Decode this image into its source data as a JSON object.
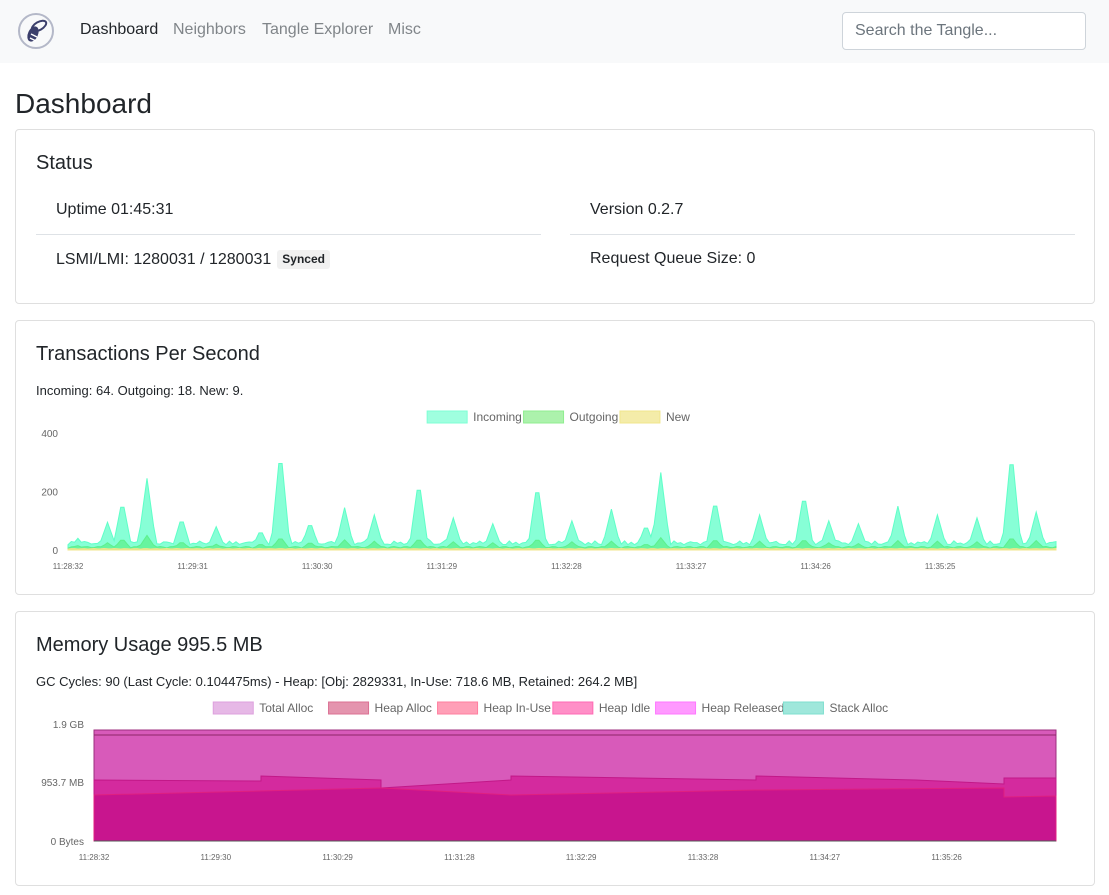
{
  "nav": {
    "items": [
      {
        "label": "Dashboard",
        "active": true
      },
      {
        "label": "Neighbors",
        "active": false
      },
      {
        "label": "Tangle Explorer",
        "active": false
      },
      {
        "label": "Misc",
        "active": false
      }
    ],
    "search_placeholder": "Search the Tangle..."
  },
  "page_title": "Dashboard",
  "status": {
    "title": "Status",
    "uptime": "Uptime 01:45:31",
    "version": "Version 0.2.7",
    "lsmi": "LSMI/LMI: 1280031 / 1280031",
    "synced_badge": "Synced",
    "request_queue": "Request Queue Size: 0"
  },
  "tps": {
    "title": "Transactions Per Second",
    "summary": "Incoming: 64. Outgoing: 18. New: 9."
  },
  "memory": {
    "title": "Memory Usage 995.5 MB",
    "summary": "GC Cycles: 90 (Last Cycle: 0.104475ms) - Heap: [Obj: 2829331, In-Use: 718.6 MB, Retained: 264.2 MB]"
  },
  "chart_data": [
    {
      "type": "area",
      "legend_position": "top",
      "series": [
        {
          "name": "Incoming",
          "color": "#7fffd4"
        },
        {
          "name": "Outgoing",
          "color": "#90ee90"
        },
        {
          "name": "New",
          "color": "#f0e68c"
        }
      ],
      "y_ticks": [
        "400",
        "200",
        "0"
      ],
      "ylim": [
        0,
        400
      ],
      "x_ticks": [
        "11:28:32",
        "11:29:31",
        "11:30:30",
        "11:31:29",
        "11:32:28",
        "11:33:27",
        "11:34:26",
        "11:35:25"
      ],
      "peaks": [
        {
          "x": 0.01,
          "incoming": 40,
          "outgoing": 15
        },
        {
          "x": 0.04,
          "incoming": 95,
          "outgoing": 25
        },
        {
          "x": 0.055,
          "incoming": 175,
          "outgoing": 40
        },
        {
          "x": 0.08,
          "incoming": 245,
          "outgoing": 50
        },
        {
          "x": 0.115,
          "incoming": 115,
          "outgoing": 30
        },
        {
          "x": 0.15,
          "incoming": 80,
          "outgoing": 20
        },
        {
          "x": 0.195,
          "incoming": 70,
          "outgoing": 22
        },
        {
          "x": 0.215,
          "incoming": 355,
          "outgoing": 45
        },
        {
          "x": 0.245,
          "incoming": 100,
          "outgoing": 28
        },
        {
          "x": 0.28,
          "incoming": 145,
          "outgoing": 35
        },
        {
          "x": 0.31,
          "incoming": 120,
          "outgoing": 30
        },
        {
          "x": 0.355,
          "incoming": 245,
          "outgoing": 40
        },
        {
          "x": 0.39,
          "incoming": 110,
          "outgoing": 28
        },
        {
          "x": 0.43,
          "incoming": 90,
          "outgoing": 25
        },
        {
          "x": 0.475,
          "incoming": 235,
          "outgoing": 40
        },
        {
          "x": 0.51,
          "incoming": 100,
          "outgoing": 28
        },
        {
          "x": 0.55,
          "incoming": 140,
          "outgoing": 30
        },
        {
          "x": 0.585,
          "incoming": 90,
          "outgoing": 22
        },
        {
          "x": 0.6,
          "incoming": 265,
          "outgoing": 42
        },
        {
          "x": 0.655,
          "incoming": 180,
          "outgoing": 38
        },
        {
          "x": 0.7,
          "incoming": 120,
          "outgoing": 30
        },
        {
          "x": 0.745,
          "incoming": 200,
          "outgoing": 38
        },
        {
          "x": 0.77,
          "incoming": 100,
          "outgoing": 25
        },
        {
          "x": 0.8,
          "incoming": 90,
          "outgoing": 22
        },
        {
          "x": 0.84,
          "incoming": 150,
          "outgoing": 32
        },
        {
          "x": 0.88,
          "incoming": 120,
          "outgoing": 30
        },
        {
          "x": 0.92,
          "incoming": 110,
          "outgoing": 28
        },
        {
          "x": 0.955,
          "incoming": 350,
          "outgoing": 45
        },
        {
          "x": 0.98,
          "incoming": 130,
          "outgoing": 32
        }
      ]
    },
    {
      "type": "area",
      "legend_position": "top",
      "series": [
        {
          "name": "Total Alloc",
          "color": "#dda0dd"
        },
        {
          "name": "Heap Alloc",
          "color": "#db7093"
        },
        {
          "name": "Heap In-Use",
          "color": "#ff7f9f"
        },
        {
          "name": "Heap Idle",
          "color": "#ff69b4"
        },
        {
          "name": "Heap Released",
          "color": "#ff77ff"
        },
        {
          "name": "Stack Alloc",
          "color": "#7fdfcf"
        }
      ],
      "y_ticks": [
        "1.9 GB",
        "953.7 MB",
        "0 Bytes"
      ],
      "x_ticks": [
        "11:28:32",
        "11:29:30",
        "11:30:29",
        "11:31:28",
        "11:32:29",
        "11:33:28",
        "11:34:27",
        "11:35:26"
      ]
    }
  ]
}
